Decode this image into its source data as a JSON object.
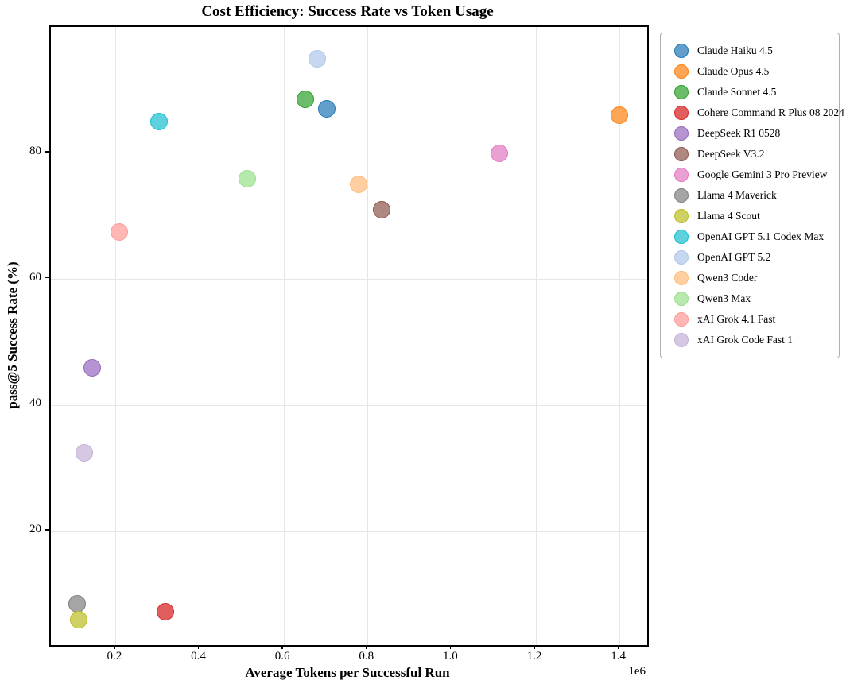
{
  "chart_data": {
    "type": "scatter",
    "title": "Cost Efficiency: Success Rate vs Token Usage",
    "xlabel": "Average Tokens per Successful Run",
    "ylabel": "pass@5 Success Rate (%)",
    "x_offset_label": "1e6",
    "xlim": [
      45000,
      1465000
    ],
    "ylim": [
      2,
      100
    ],
    "grid": true,
    "legend_position": "outside-upper-right",
    "xticks": {
      "values": [
        200000,
        400000,
        600000,
        800000,
        1000000,
        1200000,
        1400000
      ],
      "labels": [
        "0.2",
        "0.4",
        "0.6",
        "0.8",
        "1.0",
        "1.2",
        "1.4"
      ]
    },
    "yticks": {
      "values": [
        20,
        40,
        60,
        80
      ],
      "labels": [
        "20",
        "40",
        "60",
        "80"
      ]
    },
    "series": [
      {
        "name": "Claude Haiku 4.5",
        "x": 702000,
        "y": 87,
        "color": "#1f77b4",
        "fill": "#62a0cb"
      },
      {
        "name": "Claude Opus 4.5",
        "x": 1398000,
        "y": 86,
        "color": "#ff7f0e",
        "fill": "#ffa556"
      },
      {
        "name": "Claude Sonnet 4.5",
        "x": 650000,
        "y": 88.5,
        "color": "#2ca02c",
        "fill": "#6bbd6b"
      },
      {
        "name": "Cohere Command R Plus 08 2024",
        "x": 318000,
        "y": 7.3,
        "color": "#d62728",
        "fill": "#e25e5e"
      },
      {
        "name": "DeepSeek R1 0528",
        "x": 143000,
        "y": 46,
        "color": "#9467bd",
        "fill": "#b495d1"
      },
      {
        "name": "DeepSeek V3.2",
        "x": 832000,
        "y": 71,
        "color": "#8c564b",
        "fill": "#af8981"
      },
      {
        "name": "Google Gemini 3 Pro Preview",
        "x": 1112000,
        "y": 80,
        "color": "#e377c2",
        "fill": "#eba0d4"
      },
      {
        "name": "Llama 4 Maverick",
        "x": 107000,
        "y": 8.5,
        "color": "#7f7f7f",
        "fill": "#a5a5a5"
      },
      {
        "name": "Llama 4 Scout",
        "x": 111000,
        "y": 6,
        "color": "#bcbd22",
        "fill": "#d0d164"
      },
      {
        "name": "OpenAI GPT 5.1 Codex Max",
        "x": 303000,
        "y": 85,
        "color": "#17becf",
        "fill": "#5dd2dd"
      },
      {
        "name": "OpenAI GPT 5.2",
        "x": 679000,
        "y": 95,
        "color": "#aec7e8",
        "fill": "#c6d8ef"
      },
      {
        "name": "Qwen3 Coder",
        "x": 778000,
        "y": 75,
        "color": "#ffbb78",
        "fill": "#ffcfa1"
      },
      {
        "name": "Qwen3 Max",
        "x": 513000,
        "y": 76,
        "color": "#98df8a",
        "fill": "#b7e9ad"
      },
      {
        "name": "xAI Grok 4.1 Fast",
        "x": 208000,
        "y": 67.5,
        "color": "#ff9896",
        "fill": "#ffb7b5"
      },
      {
        "name": "xAI Grok Code Fast 1",
        "x": 124000,
        "y": 32.5,
        "color": "#c5b0d5",
        "fill": "#d6c8e2"
      }
    ]
  },
  "colors": {
    "grid": "#e6e6e6",
    "spine": "#000000",
    "legend_border": "#b0b0b0",
    "background": "#ffffff",
    "text": "#000000"
  }
}
